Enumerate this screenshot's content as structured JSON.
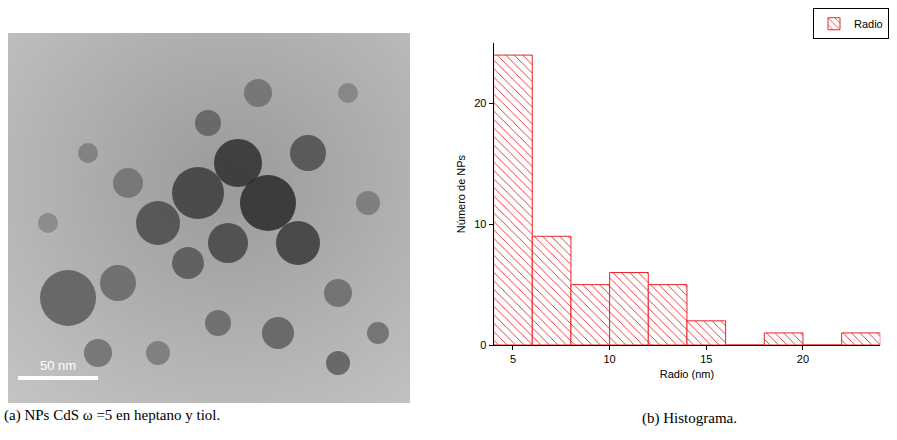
{
  "chart_data": {
    "type": "bar",
    "caption": "(b) Histograma.",
    "x_label": "Radio (nm)",
    "y_label": "Número de NPs",
    "bins": [
      4,
      6,
      8,
      10,
      12,
      14,
      16,
      18,
      20,
      22,
      24
    ],
    "series": [
      {
        "name": "Radio",
        "color": "#e8262d",
        "values": [
          24,
          9,
          5,
          6,
          5,
          2,
          0,
          1,
          0,
          1
        ]
      }
    ],
    "xlim": [
      4,
      24
    ],
    "xticks": [
      5,
      10,
      15,
      20
    ],
    "ylim": [
      0,
      25
    ],
    "yticks": [
      0,
      10,
      20
    ],
    "grid": false,
    "legend": "top right"
  },
  "image_panel": {
    "caption": "(a) NPs CdS ω =5 en heptano y tiol.",
    "scale_bar_label": "50 nm"
  }
}
